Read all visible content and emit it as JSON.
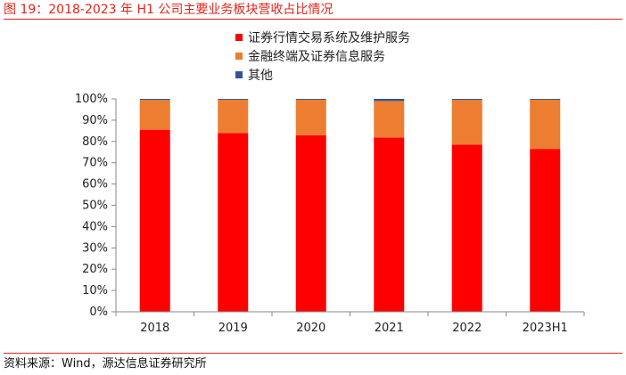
{
  "figure": {
    "title": "图 19：2018-2023 年 H1 公司主要业务板块营收占比情况",
    "source": "资料来源：Wind，源达信息证券研究所"
  },
  "chart_data": {
    "type": "bar",
    "stacked": true,
    "categories": [
      "2018",
      "2019",
      "2020",
      "2021",
      "2022",
      "2023H1"
    ],
    "series": [
      {
        "name": "证券行情交易系统及维护服务",
        "color": "#ff0000",
        "values": [
          85.5,
          84.0,
          82.9,
          81.9,
          78.5,
          76.5
        ]
      },
      {
        "name": "金融终端及证券信息服务",
        "color": "#ed7d31",
        "values": [
          14.0,
          15.6,
          16.7,
          17.1,
          21.0,
          23.1
        ]
      },
      {
        "name": "其他",
        "color": "#2e5597",
        "values": [
          0.5,
          0.4,
          0.4,
          1.0,
          0.5,
          0.4
        ]
      }
    ],
    "yticks": [
      "0%",
      "10%",
      "20%",
      "30%",
      "40%",
      "50%",
      "60%",
      "70%",
      "80%",
      "90%",
      "100%"
    ],
    "ylim": [
      0,
      100
    ],
    "ylabel": "",
    "xlabel": "",
    "legend_position": "top-center"
  }
}
